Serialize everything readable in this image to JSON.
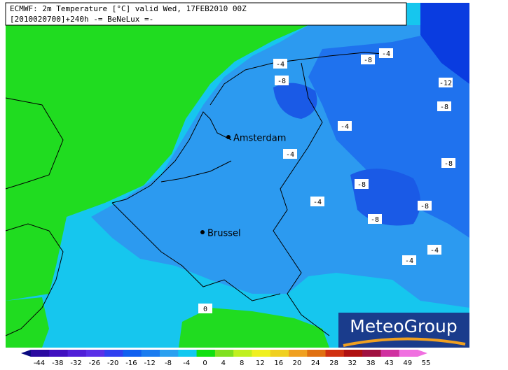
{
  "header": {
    "line1": "ECMWF: 2m Temperature [°C] valid Wed, 17FEB2010 00Z",
    "line2": "[2010020700]+240h -= BeNeLux =-"
  },
  "cities": [
    {
      "name": "Amsterdam"
    },
    {
      "name": "Brussel"
    }
  ],
  "contour_labels": [
    "-4",
    "-8",
    "-8",
    "-4",
    "-12",
    "-8",
    "-4",
    "-4",
    "-8",
    "-8",
    "-4",
    "-8",
    "-8",
    "-4",
    "-4",
    "0"
  ],
  "legend": {
    "ticks": [
      -44,
      -38,
      -32,
      -26,
      -20,
      -16,
      -12,
      -8,
      -4,
      0,
      4,
      8,
      12,
      16,
      20,
      24,
      28,
      32,
      38,
      43,
      49,
      55
    ],
    "colors": [
      "#0a0a80",
      "#2a0aa0",
      "#4010c0",
      "#5020d8",
      "#5a30e8",
      "#3040f0",
      "#1060f0",
      "#1a7cf0",
      "#2aa0f0",
      "#10c8f0",
      "#10e010",
      "#80e020",
      "#c0f020",
      "#f0f020",
      "#f0d020",
      "#f0a020",
      "#e07010",
      "#d03010",
      "#b01010",
      "#a01040",
      "#d030a0",
      "#f070e0"
    ]
  },
  "logo": "MeteoGroup"
}
